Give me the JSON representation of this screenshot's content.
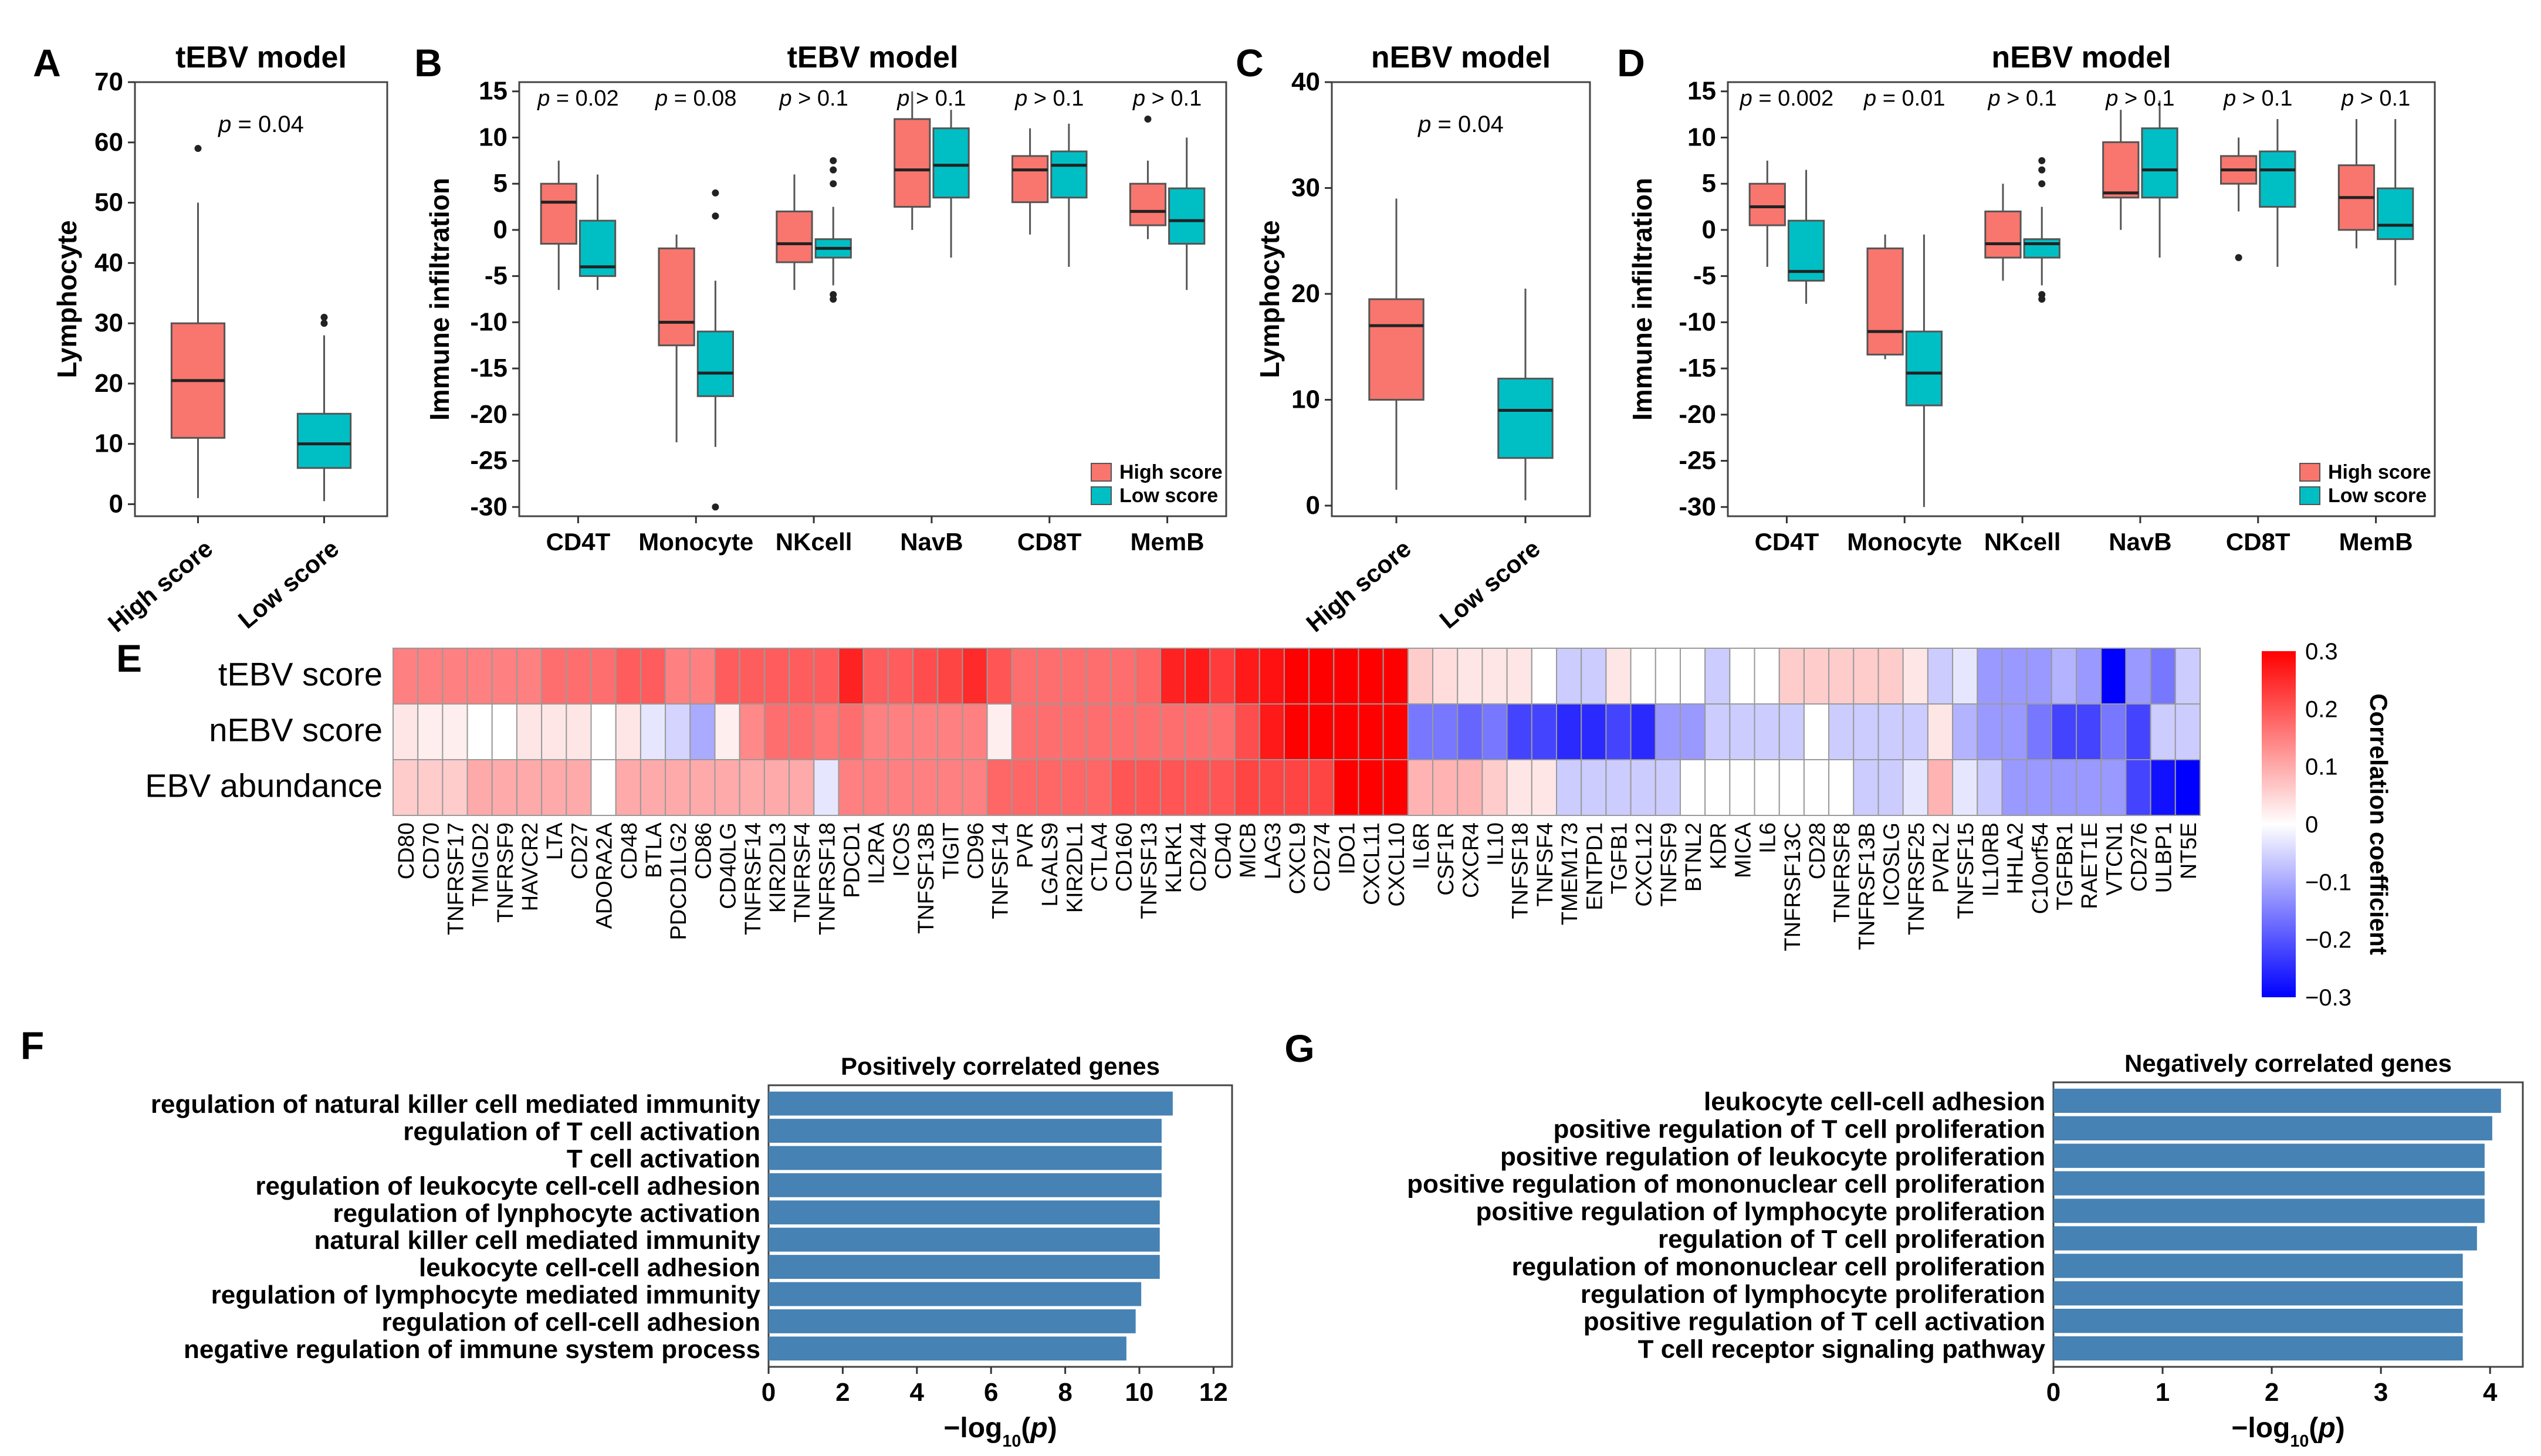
{
  "colors": {
    "high": "#F8766D",
    "low": "#00BFC4",
    "bar": "#4682B4",
    "heat_neg": "#0000FF",
    "heat_pos": "#FF0000",
    "heat_mid": "#FFFFFF",
    "grid": "#999999"
  },
  "panel_labels": [
    "A",
    "B",
    "C",
    "D",
    "E",
    "F",
    "G"
  ],
  "chart_data": [
    {
      "id": "A",
      "type": "box",
      "title": "tEBV model",
      "ylabel": "Lymphocyte",
      "ylim": [
        -2,
        70
      ],
      "yticks": [
        0,
        10,
        20,
        30,
        40,
        50,
        60,
        70
      ],
      "categories": [
        "High score",
        "Low score"
      ],
      "boxes": [
        {
          "group": "High score",
          "min": 1,
          "q1": 11,
          "median": 20.5,
          "q3": 30,
          "max": 50,
          "outliers": [
            59
          ]
        },
        {
          "group": "Low score",
          "min": 0.5,
          "q1": 6,
          "median": 10,
          "q3": 15,
          "max": 28,
          "outliers": [
            30,
            31
          ]
        }
      ],
      "annotations": [
        {
          "text": "p = 0.04"
        }
      ]
    },
    {
      "id": "B",
      "type": "box",
      "title": "tEBV model",
      "ylabel": "Immune infiltration",
      "ylim": [
        -31,
        16
      ],
      "yticks": [
        -30,
        -25,
        -20,
        -15,
        -10,
        -5,
        0,
        5,
        10,
        15
      ],
      "categories": [
        "CD4T",
        "Monocyte",
        "NKcell",
        "NavB",
        "CD8T",
        "MemB"
      ],
      "pvalues": [
        "p = 0.02",
        "p = 0.08",
        "p > 0.1",
        "p > 0.1",
        "p > 0.1",
        "p > 0.1"
      ],
      "legend": [
        "High score",
        "Low score"
      ],
      "series": [
        {
          "name": "High score",
          "boxes": [
            {
              "min": -6.5,
              "q1": -1.5,
              "median": 3,
              "q3": 5,
              "max": 7.5,
              "outliers": []
            },
            {
              "min": -23,
              "q1": -12.5,
              "median": -10,
              "q3": -2,
              "max": -0.5,
              "outliers": []
            },
            {
              "min": -6.5,
              "q1": -3.5,
              "median": -1.5,
              "q3": 2,
              "max": 6,
              "outliers": []
            },
            {
              "min": 0,
              "q1": 2.5,
              "median": 6.5,
              "q3": 12,
              "max": 15,
              "outliers": []
            },
            {
              "min": -0.5,
              "q1": 3,
              "median": 6.5,
              "q3": 8,
              "max": 11,
              "outliers": []
            },
            {
              "min": -1,
              "q1": 0.5,
              "median": 2,
              "q3": 5,
              "max": 7.5,
              "outliers": [
                12
              ]
            }
          ]
        },
        {
          "name": "Low score",
          "boxes": [
            {
              "min": -6.5,
              "q1": -5,
              "median": -4,
              "q3": 1,
              "max": 6,
              "outliers": []
            },
            {
              "min": -23.5,
              "q1": -18,
              "median": -15.5,
              "q3": -11,
              "max": -5.5,
              "outliers": [
                4,
                1.5,
                -30
              ]
            },
            {
              "min": -6,
              "q1": -3,
              "median": -2,
              "q3": -1,
              "max": 2.5,
              "outliers": [
                5,
                6.5,
                7.5,
                -7,
                -7.5
              ]
            },
            {
              "min": -3,
              "q1": 3.5,
              "median": 7,
              "q3": 11,
              "max": 13,
              "outliers": []
            },
            {
              "min": -4,
              "q1": 3.5,
              "median": 7,
              "q3": 8.5,
              "max": 11.5,
              "outliers": []
            },
            {
              "min": -6.5,
              "q1": -1.5,
              "median": 1,
              "q3": 4.5,
              "max": 10,
              "outliers": []
            }
          ]
        }
      ]
    },
    {
      "id": "C",
      "type": "box",
      "title": "nEBV model",
      "ylabel": "Lymphocyte",
      "ylim": [
        -1,
        40
      ],
      "yticks": [
        0,
        10,
        20,
        30,
        40
      ],
      "categories": [
        "High score",
        "Low score"
      ],
      "boxes": [
        {
          "group": "High score",
          "min": 1.5,
          "q1": 10,
          "median": 17,
          "q3": 19.5,
          "max": 29,
          "outliers": []
        },
        {
          "group": "Low score",
          "min": 0.5,
          "q1": 4.5,
          "median": 9,
          "q3": 12,
          "max": 20.5,
          "outliers": []
        }
      ],
      "annotations": [
        {
          "text": "p = 0.04"
        }
      ]
    },
    {
      "id": "D",
      "type": "box",
      "title": "nEBV model",
      "ylabel": "Immune infiltration",
      "ylim": [
        -31,
        16
      ],
      "yticks": [
        -30,
        -25,
        -20,
        -15,
        -10,
        -5,
        0,
        5,
        10,
        15
      ],
      "categories": [
        "CD4T",
        "Monocyte",
        "NKcell",
        "NavB",
        "CD8T",
        "MemB"
      ],
      "pvalues": [
        "p = 0.002",
        "p = 0.01",
        "p > 0.1",
        "p > 0.1",
        "p > 0.1",
        "p > 0.1"
      ],
      "legend": [
        "High score",
        "Low score"
      ],
      "series": [
        {
          "name": "High score",
          "boxes": [
            {
              "min": -4,
              "q1": 0.5,
              "median": 2.5,
              "q3": 5,
              "max": 7.5,
              "outliers": []
            },
            {
              "min": -14,
              "q1": -13.5,
              "median": -11,
              "q3": -2,
              "max": -0.5,
              "outliers": []
            },
            {
              "min": -5.5,
              "q1": -3,
              "median": -1.5,
              "q3": 2,
              "max": 5,
              "outliers": []
            },
            {
              "min": 0,
              "q1": 3.5,
              "median": 4,
              "q3": 9.5,
              "max": 13,
              "outliers": []
            },
            {
              "min": 2,
              "q1": 5,
              "median": 6.5,
              "q3": 8,
              "max": 10,
              "outliers": [
                -3
              ]
            },
            {
              "min": -2,
              "q1": 0,
              "median": 3.5,
              "q3": 7,
              "max": 12,
              "outliers": []
            }
          ]
        },
        {
          "name": "Low score",
          "boxes": [
            {
              "min": -8,
              "q1": -5.5,
              "median": -4.5,
              "q3": 1,
              "max": 6.5,
              "outliers": []
            },
            {
              "min": -30,
              "q1": -19,
              "median": -15.5,
              "q3": -11,
              "max": -0.5,
              "outliers": []
            },
            {
              "min": -6,
              "q1": -3,
              "median": -1.5,
              "q3": -1,
              "max": 2.5,
              "outliers": [
                5,
                6.5,
                7.5,
                -7,
                -7.5
              ]
            },
            {
              "min": -3,
              "q1": 3.5,
              "median": 6.5,
              "q3": 11,
              "max": 14,
              "outliers": []
            },
            {
              "min": -4,
              "q1": 2.5,
              "median": 6.5,
              "q3": 8.5,
              "max": 12,
              "outliers": []
            },
            {
              "min": -6,
              "q1": -1,
              "median": 0.5,
              "q3": 4.5,
              "max": 12,
              "outliers": []
            }
          ]
        }
      ]
    },
    {
      "id": "E",
      "type": "heatmap",
      "rows": [
        "tEBV score",
        "nEBV score",
        "EBV abundance"
      ],
      "columns": [
        "CD80",
        "CD70",
        "TNFRSF17",
        "TMIGD2",
        "TNFRSF9",
        "HAVCR2",
        "LTA",
        "CD27",
        "ADORA2A",
        "CD48",
        "BTLA",
        "PDCD1LG2",
        "CD86",
        "CD40LG",
        "TNFRSF14",
        "KIR2DL3",
        "TNFRSF4",
        "TNFRSF18",
        "PDCD1",
        "IL2RA",
        "ICOS",
        "TNFSF13B",
        "TIGIT",
        "CD96",
        "TNFSF14",
        "PVR",
        "LGALS9",
        "KIR2DL1",
        "CTLA4",
        "CD160",
        "TNFSF13",
        "KLRK1",
        "CD244",
        "CD40",
        "MICB",
        "LAG3",
        "CXCL9",
        "CD274",
        "IDO1",
        "CXCL11",
        "CXCL10",
        "IL6R",
        "CSF1R",
        "CXCR4",
        "IL10",
        "TNFSF18",
        "TNFSF4",
        "TMEM173",
        "ENTPD1",
        "TGFB1",
        "CXCL12",
        "TNFSF9",
        "BTNL2",
        "KDR",
        "MICA",
        "IL6",
        "TNFRSF13C",
        "CD28",
        "TNFRSF8",
        "TNFRSF13B",
        "ICOSLG",
        "TNFRSF25",
        "PVRL2",
        "TNFSF15",
        "IL10RB",
        "HHLA2",
        "C10orf54",
        "TGFBR1",
        "RAET1E",
        "VTCN1",
        "CD276",
        "ULBP1",
        "NT5E"
      ],
      "values": [
        [
          0.15,
          0.15,
          0.15,
          0.15,
          0.15,
          0.15,
          0.17,
          0.17,
          0.17,
          0.19,
          0.19,
          0.15,
          0.15,
          0.19,
          0.19,
          0.19,
          0.19,
          0.19,
          0.26,
          0.19,
          0.19,
          0.21,
          0.22,
          0.25,
          0.2,
          0.17,
          0.17,
          0.17,
          0.17,
          0.17,
          0.18,
          0.26,
          0.27,
          0.23,
          0.27,
          0.28,
          0.3,
          0.3,
          0.3,
          0.3,
          0.3,
          0.06,
          0.04,
          0.03,
          0.03,
          0.03,
          0.0,
          -0.06,
          -0.06,
          0.03,
          0.0,
          0.0,
          0.0,
          -0.06,
          0.0,
          0.0,
          0.06,
          0.06,
          0.06,
          0.06,
          0.06,
          0.03,
          -0.06,
          -0.03,
          -0.12,
          -0.12,
          -0.12,
          -0.09,
          -0.12,
          -0.3,
          -0.12,
          -0.16,
          -0.06
        ],
        [
          0.03,
          0.02,
          0.02,
          0.0,
          0.0,
          0.03,
          0.03,
          0.03,
          0.0,
          0.03,
          -0.03,
          -0.05,
          -0.1,
          0.02,
          0.14,
          0.17,
          0.17,
          0.16,
          0.17,
          0.15,
          0.15,
          0.15,
          0.15,
          0.15,
          0.02,
          0.17,
          0.17,
          0.17,
          0.17,
          0.17,
          0.17,
          0.17,
          0.17,
          0.17,
          0.21,
          0.27,
          0.3,
          0.3,
          0.3,
          0.3,
          0.3,
          -0.16,
          -0.16,
          -0.18,
          -0.16,
          -0.22,
          -0.22,
          -0.25,
          -0.25,
          -0.22,
          -0.25,
          -0.12,
          -0.12,
          -0.06,
          -0.06,
          -0.06,
          -0.06,
          0.0,
          -0.06,
          -0.06,
          -0.06,
          -0.06,
          0.03,
          -0.09,
          -0.12,
          -0.12,
          -0.16,
          -0.22,
          -0.22,
          -0.16,
          -0.22,
          -0.06,
          -0.06
        ],
        [
          0.06,
          0.06,
          0.06,
          0.1,
          0.1,
          0.1,
          0.1,
          0.1,
          0.0,
          0.1,
          0.1,
          0.1,
          0.1,
          0.1,
          0.1,
          0.1,
          0.1,
          -0.03,
          0.15,
          0.15,
          0.15,
          0.15,
          0.15,
          0.15,
          0.18,
          0.18,
          0.18,
          0.18,
          0.18,
          0.2,
          0.2,
          0.2,
          0.2,
          0.2,
          0.22,
          0.22,
          0.22,
          0.22,
          0.3,
          0.3,
          0.3,
          0.09,
          0.09,
          0.09,
          0.06,
          0.03,
          0.03,
          -0.06,
          -0.06,
          -0.06,
          -0.06,
          -0.06,
          0.0,
          0.0,
          0.0,
          0.0,
          0.0,
          0.0,
          0.0,
          -0.06,
          -0.06,
          -0.03,
          0.09,
          -0.03,
          -0.06,
          -0.12,
          -0.12,
          -0.12,
          -0.12,
          -0.12,
          -0.22,
          -0.28,
          -0.3
        ]
      ],
      "scale_min": -0.3,
      "scale_max": 0.3,
      "colorbar_title": "Correlation coefficient",
      "colorbar_ticks": [
        "0.3",
        "0.2",
        "0.1",
        "0",
        "−0.1",
        "−0.2",
        "−0.3"
      ]
    },
    {
      "id": "F",
      "type": "bar",
      "orientation": "horizontal",
      "title": "Positively correlated genes",
      "xlabel": "−log10(p)",
      "xlim": [
        0,
        12.5
      ],
      "xticks": [
        0,
        2,
        4,
        6,
        8,
        10,
        12
      ],
      "categories": [
        "regulation of natural killer cell mediated immunity",
        "regulation of T cell activation",
        "T cell activation",
        "regulation of leukocyte cell-cell adhesion",
        "regulation of lynphocyte activation",
        "natural killer cell mediated immunity",
        "leukocyte cell-cell adhesion",
        "regulation of lymphocyte mediated immunity",
        "regulation of cell-cell adhesion",
        "negative regulation of immune system process"
      ],
      "values": [
        10.9,
        10.6,
        10.6,
        10.6,
        10.55,
        10.55,
        10.55,
        10.05,
        9.9,
        9.65
      ]
    },
    {
      "id": "G",
      "type": "bar",
      "orientation": "horizontal",
      "title": "Negatively correlated genes",
      "xlabel": "−log10(p)",
      "xlim": [
        0,
        4.3
      ],
      "xticks": [
        0,
        1,
        2,
        3,
        4
      ],
      "categories": [
        "leukocyte cell-cell adhesion",
        "positive regulation of T cell proliferation",
        "positive regulation of leukocyte proliferation",
        "positive regulation of mononuclear cell proliferation",
        "positive regulation of lymphocyte proliferation",
        "regulation of T cell proliferation",
        "regulation of mononuclear cell proliferation",
        "regulation of lymphocyte proliferation",
        "positive regulation of T cell activation",
        "T cell receptor signaling pathway"
      ],
      "values": [
        4.1,
        4.02,
        3.95,
        3.95,
        3.95,
        3.88,
        3.75,
        3.75,
        3.75,
        3.75
      ]
    }
  ]
}
